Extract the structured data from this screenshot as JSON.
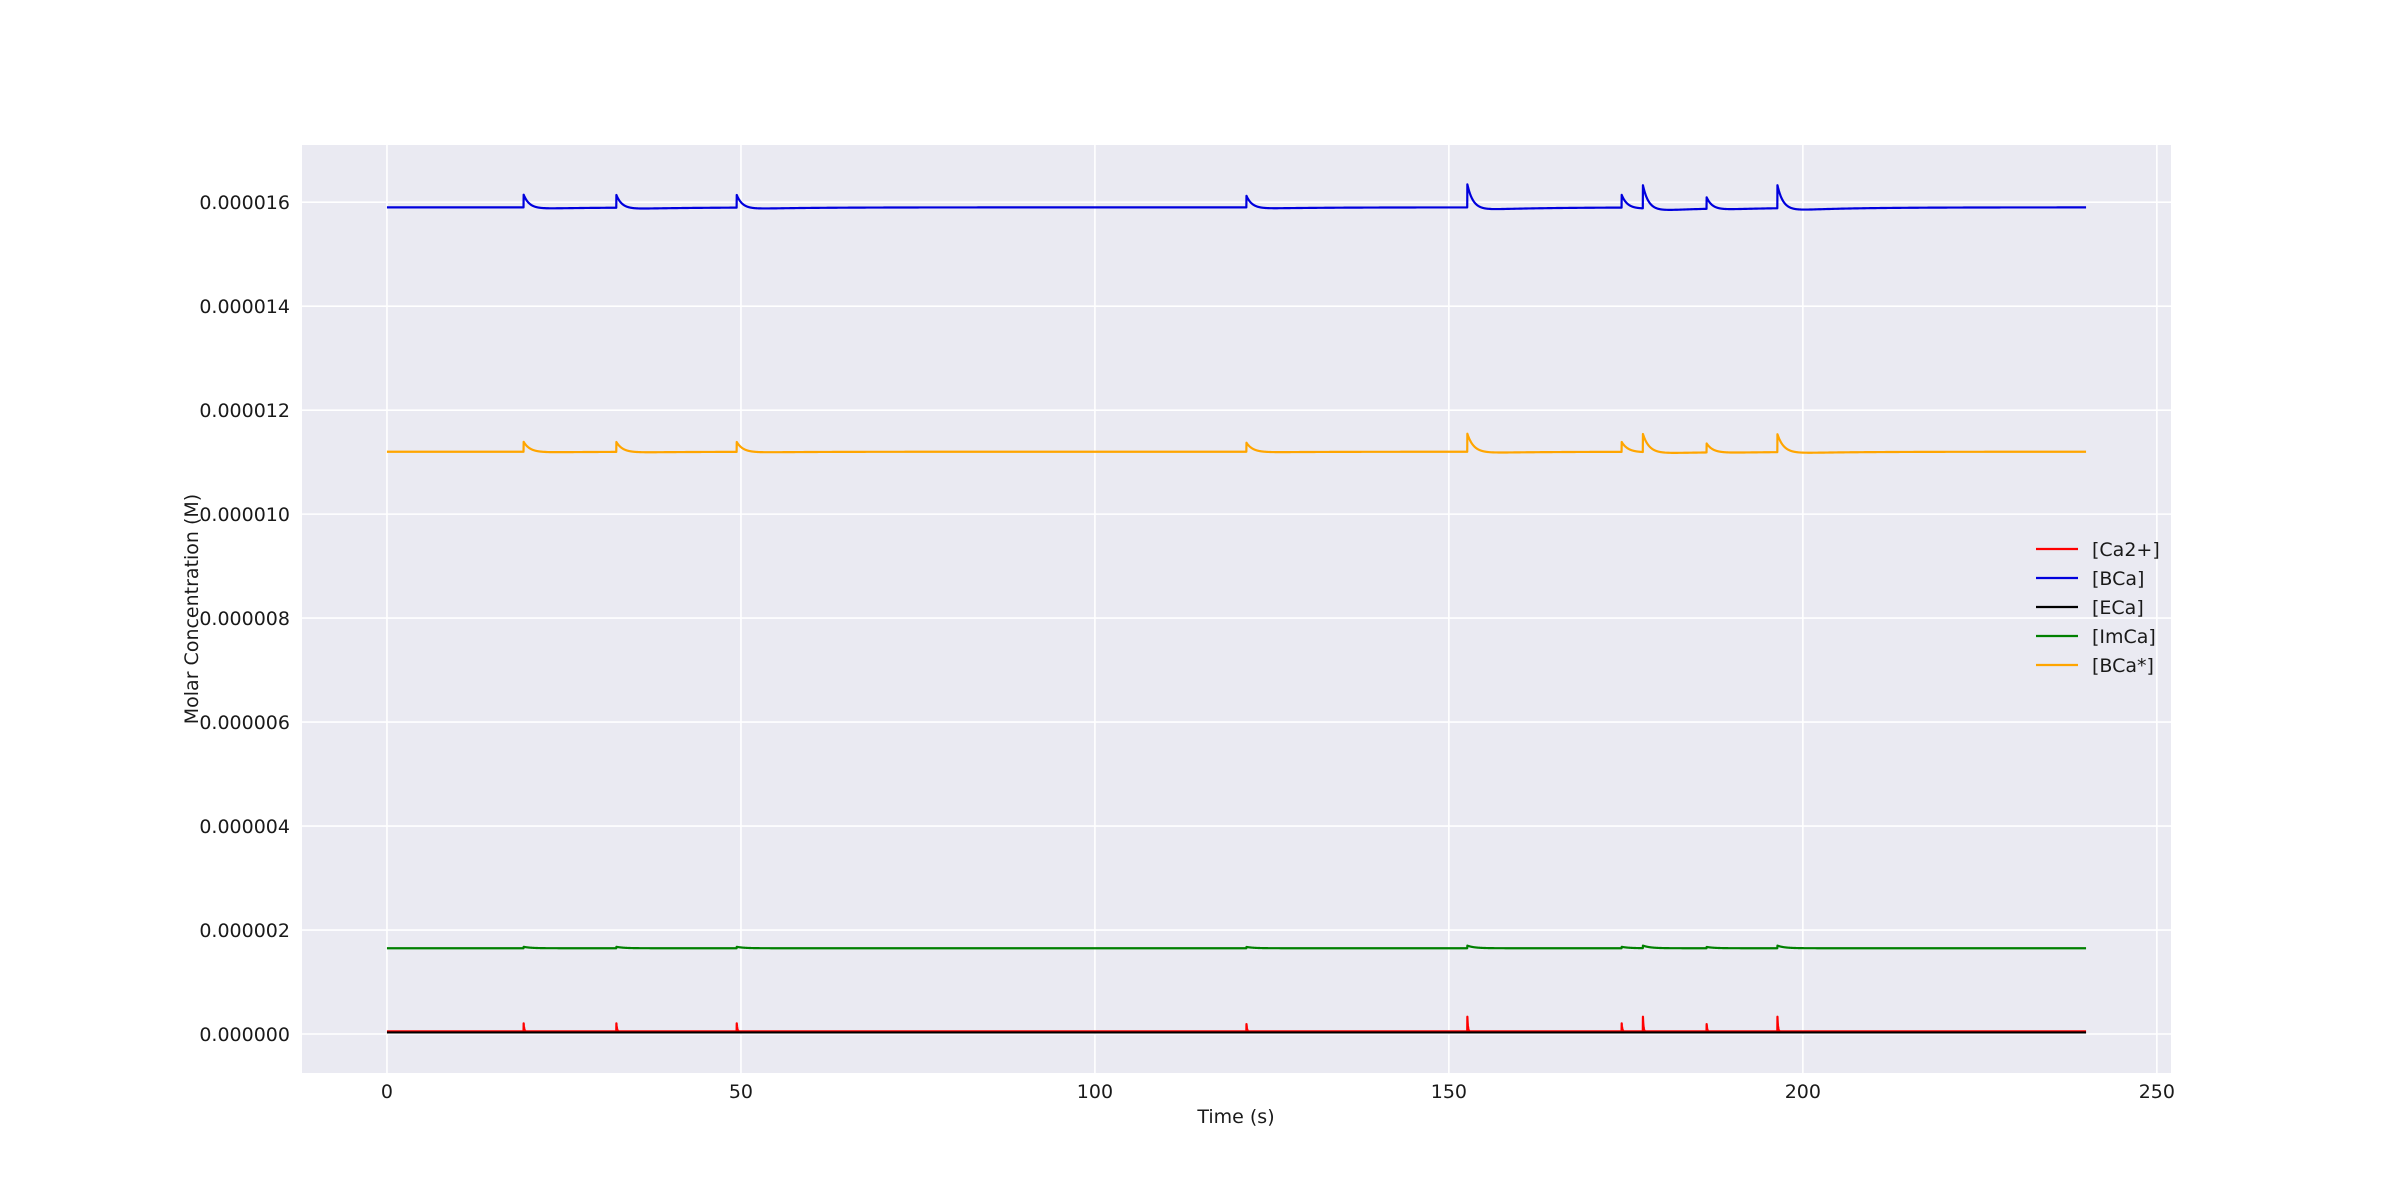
{
  "chart_data": {
    "type": "line",
    "title": "",
    "xlabel": "Time (s)",
    "ylabel": "Molar Concentration (M)",
    "xlim": [
      -12,
      252
    ],
    "ylim": [
      -7.5e-07,
      1.71e-05
    ],
    "x_ticks": [
      0,
      50,
      100,
      150,
      200,
      250
    ],
    "x_tick_labels": [
      "0",
      "50",
      "100",
      "150",
      "200",
      "250"
    ],
    "y_ticks": [
      0,
      2e-06,
      4e-06,
      6e-06,
      8e-06,
      1e-05,
      1.2e-05,
      1.4e-05,
      1.6e-05
    ],
    "y_tick_labels": [
      "0.000000",
      "0.000002",
      "0.000004",
      "0.000006",
      "0.000008",
      "0.000010",
      "0.000012",
      "0.000014",
      "0.000016"
    ],
    "grid": true,
    "legend_position": "center-right",
    "spike_times": [
      19.3,
      32.4,
      49.4,
      121.4,
      152.6,
      174.4,
      177.4,
      186.4,
      196.4
    ],
    "spike_strength": [
      0.55,
      0.55,
      0.55,
      0.5,
      1.0,
      0.55,
      1.0,
      0.5,
      1.0
    ],
    "x_range": [
      0,
      240
    ],
    "series": [
      {
        "name": "[Ca2+]",
        "color": "#ff0000",
        "baseline": 5e-08,
        "peak": 3.2e-07,
        "decay_s": 0.08
      },
      {
        "name": "[BCa]",
        "color": "#0000dd",
        "baseline": 1.59e-05,
        "peak": 4.5e-07,
        "dip": 6e-08,
        "decay_s": 0.8
      },
      {
        "name": "[ECa]",
        "color": "#000000",
        "baseline": 3e-08,
        "peak": 0.0,
        "decay_s": 0.1
      },
      {
        "name": "[ImCa]",
        "color": "#008000",
        "baseline": 1.65e-06,
        "peak": 5e-08,
        "decay_s": 1.0
      },
      {
        "name": "[BCa*]",
        "color": "#ffa500",
        "baseline": 1.12e-05,
        "peak": 3.5e-07,
        "dip": 3e-08,
        "decay_s": 0.9
      }
    ]
  }
}
